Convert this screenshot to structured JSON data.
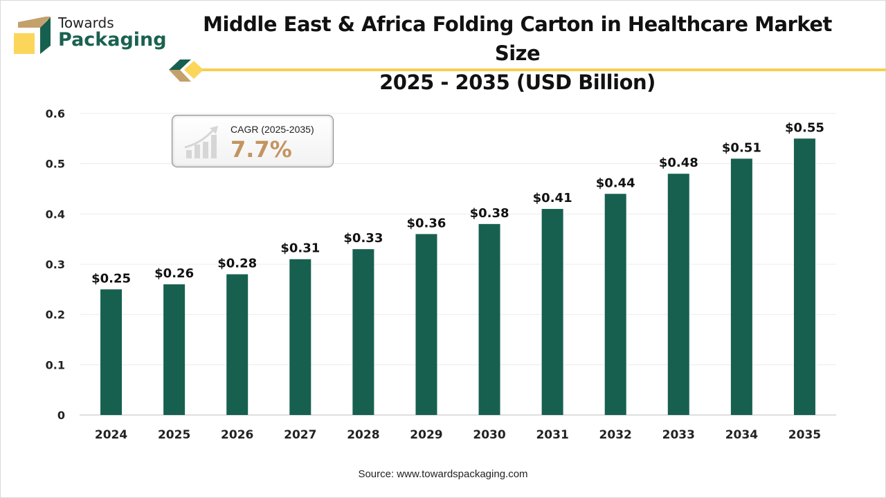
{
  "logo": {
    "line1": "Towards",
    "line2": "Packaging"
  },
  "title_line1": "Middle East & Africa Folding Carton in Healthcare Market Size",
  "title_line2": "2025 - 2035 (USD Billion)",
  "cagr": {
    "label": "CAGR (2025-2035)",
    "value": "7.7%",
    "icon": "growth-chart-icon"
  },
  "source": "Source: www.towardspackaging.com",
  "colors": {
    "bar": "#17604f",
    "accent": "#f5cf4e",
    "cagr_value": "#c39461"
  },
  "chart_data": {
    "type": "bar",
    "title": "Middle East & Africa Folding Carton in Healthcare Market Size 2025 - 2035 (USD Billion)",
    "categories": [
      "2024",
      "2025",
      "2026",
      "2027",
      "2028",
      "2029",
      "2030",
      "2031",
      "2032",
      "2033",
      "2034",
      "2035"
    ],
    "values": [
      0.25,
      0.26,
      0.28,
      0.31,
      0.33,
      0.36,
      0.38,
      0.41,
      0.44,
      0.48,
      0.51,
      0.55
    ],
    "data_labels": [
      "$0.25",
      "$0.26",
      "$0.28",
      "$0.31",
      "$0.33",
      "$0.36",
      "$0.38",
      "$0.41",
      "$0.44",
      "$0.48",
      "$0.51",
      "$0.55"
    ],
    "yticks": [
      "0",
      "0.1",
      "0.2",
      "0.3",
      "0.4",
      "0.5",
      "0.6"
    ],
    "ylim": [
      0,
      0.6
    ],
    "xlabel": "",
    "ylabel": "",
    "grid": true,
    "legend": "none"
  }
}
